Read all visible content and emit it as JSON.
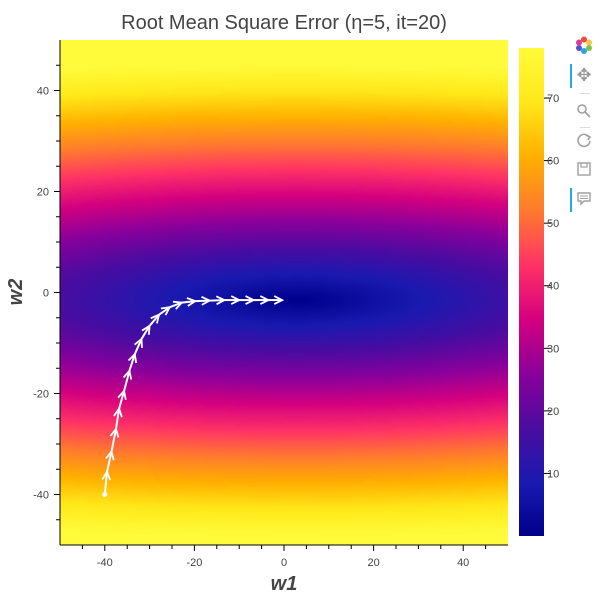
{
  "chart_data": {
    "type": "heatmap",
    "title": "Root Mean Square Error (η=5, it=20)",
    "xlabel": "w1",
    "ylabel": "w2",
    "xlim": [
      -50,
      50
    ],
    "ylim": [
      -50,
      50
    ],
    "x_ticks": [
      -40,
      -20,
      0,
      20,
      40
    ],
    "y_ticks": [
      -40,
      -20,
      0,
      20,
      40
    ],
    "colorbar": {
      "range": [
        0,
        78
      ],
      "ticks": [
        10,
        20,
        30,
        40,
        50,
        60,
        70
      ],
      "palette": [
        "#00008b",
        "#1a1ab0",
        "#4b0ca0",
        "#8b009b",
        "#d4007f",
        "#ff3366",
        "#ff7a2e",
        "#ffb000",
        "#ffe81a",
        "#fffb3a"
      ]
    },
    "error_surface": {
      "minimum": [
        3,
        -1.5
      ],
      "approx_formula": "rmse = sqrt(0.1*(w1-3)^2 + 2.8*(w2+1.5)^2)"
    },
    "descent_path": {
      "color": "#ffffff",
      "points": [
        [
          -40,
          -40
        ],
        [
          -39.5,
          -35.5
        ],
        [
          -38.5,
          -31.5
        ],
        [
          -37.5,
          -27
        ],
        [
          -36.8,
          -23
        ],
        [
          -35.7,
          -19.5
        ],
        [
          -34.5,
          -15.5
        ],
        [
          -33.3,
          -12.2
        ],
        [
          -31.8,
          -9.2
        ],
        [
          -30,
          -6.6
        ],
        [
          -27.9,
          -4.4
        ],
        [
          -25.5,
          -2.9
        ],
        [
          -22.8,
          -2.0
        ],
        [
          -19.8,
          -1.7
        ],
        [
          -16.6,
          -1.6
        ],
        [
          -13.3,
          -1.5
        ],
        [
          -10,
          -1.5
        ],
        [
          -6.8,
          -1.5
        ],
        [
          -3.5,
          -1.5
        ],
        [
          -0.4,
          -1.5
        ],
        [
          -0.4,
          -1.5
        ]
      ]
    }
  },
  "toolbar": {
    "logo": "bokeh-logo-icon",
    "tools": [
      {
        "name": "pan-tool-icon",
        "glyph": "✥",
        "active": true
      },
      {
        "name": "wheel-zoom-tool-icon",
        "glyph": "⚲",
        "active": false
      },
      {
        "name": "reset-tool-icon",
        "glyph": "⟳",
        "active": false
      },
      {
        "name": "save-tool-icon",
        "glyph": "🖫",
        "active": false
      },
      {
        "name": "hover-tool-icon",
        "glyph": "💬",
        "active": true
      }
    ]
  }
}
